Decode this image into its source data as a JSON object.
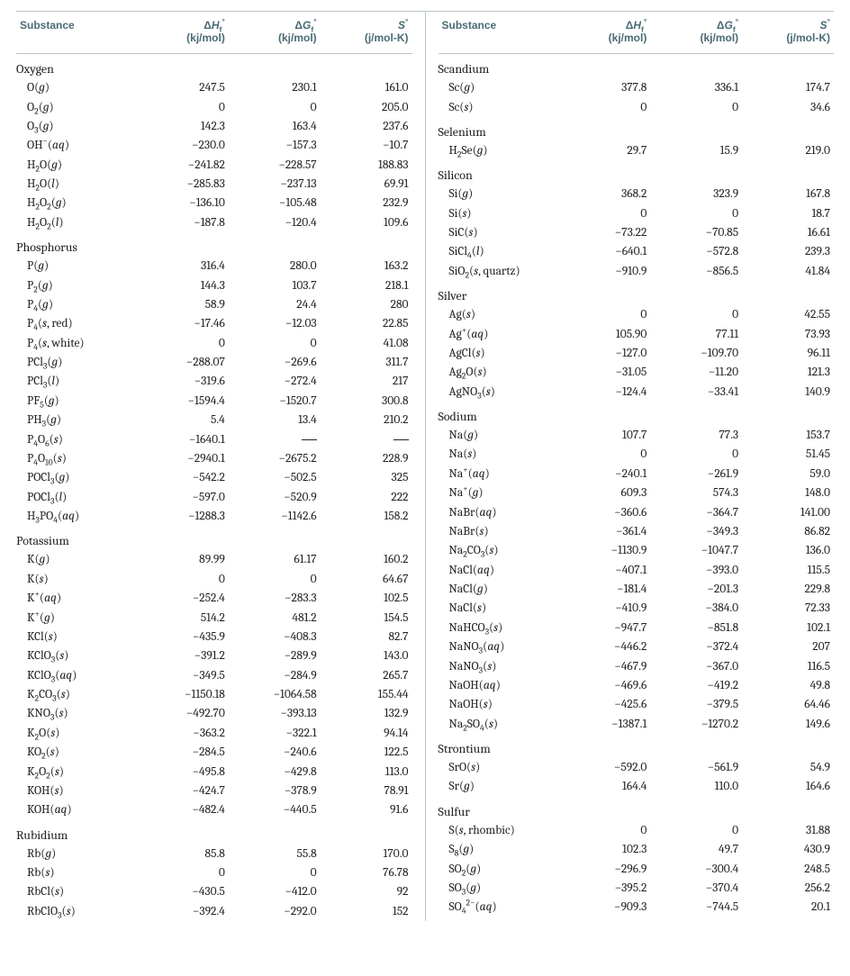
{
  "headers": {
    "substance": "Substance",
    "dh": "Δ",
    "dh_sym": "H",
    "dh_sub": "f",
    "dh_sup": "°",
    "dh_unit": "(kj/mol)",
    "dg": "Δ",
    "dg_sym": "G",
    "dg_sub": "f",
    "dg_sup": "°",
    "dg_unit": "(kj/mol)",
    "s": "S",
    "s_sup": "°",
    "s_unit": "(j/mol-K)"
  },
  "left": [
    {
      "section": "Oxygen"
    },
    {
      "f": "O(@g@)",
      "h": "247.5",
      "g": "230.1",
      "s": "161.0"
    },
    {
      "f": "O_2(@g@)",
      "h": "0",
      "g": "0",
      "s": "205.0"
    },
    {
      "f": "O_3(@g@)",
      "h": "142.3",
      "g": "163.4",
      "s": "237.6"
    },
    {
      "f": "OH^−(@aq@)",
      "h": "-230.0",
      "g": "-157.3",
      "s": "-10.7"
    },
    {
      "f": "H_2O(@g@)",
      "h": "-241.82",
      "g": "-228.57",
      "s": "188.83"
    },
    {
      "f": "H_2O(@l@)",
      "h": "-285.83",
      "g": "-237.13",
      "s": "69.91"
    },
    {
      "f": "H_2O_2(@g@)",
      "h": "-136.10",
      "g": "-105.48",
      "s": "232.9"
    },
    {
      "f": "H_2O_2(@l@)",
      "h": "-187.8",
      "g": "-120.4",
      "s": "109.6"
    },
    {
      "section": "Phosphorus"
    },
    {
      "f": "P(@g@)",
      "h": "316.4",
      "g": "280.0",
      "s": "163.2"
    },
    {
      "f": "P_2(@g@)",
      "h": "144.3",
      "g": "103.7",
      "s": "218.1"
    },
    {
      "f": "P_4(@g@)",
      "h": "58.9",
      "g": "24.4",
      "s": "280"
    },
    {
      "f": "P_4(@s@, red)",
      "h": "-17.46",
      "g": "-12.03",
      "s": "22.85"
    },
    {
      "f": "P_4(@s@, white)",
      "h": "0",
      "g": "0",
      "s": "41.08"
    },
    {
      "f": "PCl_3(@g@)",
      "h": "-288.07",
      "g": "-269.6",
      "s": "311.7"
    },
    {
      "f": "PCl_3(@l@)",
      "h": "-319.6",
      "g": "-272.4",
      "s": "217"
    },
    {
      "f": "PF_5(@g@)",
      "h": "-1594.4",
      "g": "-1520.7",
      "s": "300.8"
    },
    {
      "f": "PH_3(@g@)",
      "h": "5.4",
      "g": "13.4",
      "s": "210.2"
    },
    {
      "f": "P_4O_6(@s@)",
      "h": "-1640.1",
      "g": "—",
      "s": "—"
    },
    {
      "f": "P_4O_1_0(@s@)",
      "h": "-2940.1",
      "g": "-2675.2",
      "s": "228.9"
    },
    {
      "f": "POCl_3(@g@)",
      "h": "-542.2",
      "g": "-502.5",
      "s": "325"
    },
    {
      "f": "POCl_3(@l@)",
      "h": "-597.0",
      "g": "-520.9",
      "s": "222"
    },
    {
      "f": "H_3PO_4(@aq@)",
      "h": "-1288.3",
      "g": "-1142.6",
      "s": "158.2"
    },
    {
      "section": "Potassium"
    },
    {
      "f": "K(@g@)",
      "h": "89.99",
      "g": "61.17",
      "s": "160.2"
    },
    {
      "f": "K(@s@)",
      "h": "0",
      "g": "0",
      "s": "64.67"
    },
    {
      "f": "K^+(@aq@)",
      "h": "-252.4",
      "g": "-283.3",
      "s": "102.5"
    },
    {
      "f": "K^+(@g@)",
      "h": "514.2",
      "g": "481.2",
      "s": "154.5"
    },
    {
      "f": "KCl(@s@)",
      "h": "-435.9",
      "g": "-408.3",
      "s": "82.7"
    },
    {
      "f": "KClO_3(@s@)",
      "h": "-391.2",
      "g": "-289.9",
      "s": "143.0"
    },
    {
      "f": "KClO_3(@aq@)",
      "h": "-349.5",
      "g": "-284.9",
      "s": "265.7"
    },
    {
      "f": "K_2CO_3(@s@)",
      "h": "-1150.18",
      "g": "-1064.58",
      "s": "155.44"
    },
    {
      "f": "KNO_3(@s@)",
      "h": "-492.70",
      "g": "-393.13",
      "s": "132.9"
    },
    {
      "f": "K_2O(@s@)",
      "h": "-363.2",
      "g": "-322.1",
      "s": "94.14"
    },
    {
      "f": "KO_2(@s@)",
      "h": "-284.5",
      "g": "-240.6",
      "s": "122.5"
    },
    {
      "f": "K_2O_2(@s@)",
      "h": "-495.8",
      "g": "-429.8",
      "s": "113.0"
    },
    {
      "f": "KOH(@s@)",
      "h": "-424.7",
      "g": "-378.9",
      "s": "78.91"
    },
    {
      "f": "KOH(@aq@)",
      "h": "-482.4",
      "g": "-440.5",
      "s": "91.6"
    },
    {
      "section": "Rubidium"
    },
    {
      "f": "Rb(@g@)",
      "h": "85.8",
      "g": "55.8",
      "s": "170.0"
    },
    {
      "f": "Rb(@s@)",
      "h": "0",
      "g": "0",
      "s": "76.78"
    },
    {
      "f": "RbCl(@s@)",
      "h": "-430.5",
      "g": "-412.0",
      "s": "92"
    },
    {
      "f": "RbClO_3(@s@)",
      "h": "-392.4",
      "g": "-292.0",
      "s": "152"
    }
  ],
  "right": [
    {
      "section": "Scandium"
    },
    {
      "f": "Sc(@g@)",
      "h": "377.8",
      "g": "336.1",
      "s": "174.7"
    },
    {
      "f": "Sc(@s@)",
      "h": "0",
      "g": "0",
      "s": "34.6"
    },
    {
      "section": "Selenium"
    },
    {
      "f": "H_2Se(@g@)",
      "h": "29.7",
      "g": "15.9",
      "s": "219.0"
    },
    {
      "section": "Silicon"
    },
    {
      "f": "Si(@g@)",
      "h": "368.2",
      "g": "323.9",
      "s": "167.8"
    },
    {
      "f": "Si(@s@)",
      "h": "0",
      "g": "0",
      "s": "18.7"
    },
    {
      "f": "SiC(@s@)",
      "h": "-73.22",
      "g": "-70.85",
      "s": "16.61"
    },
    {
      "f": "SiCl_4(@l@)",
      "h": "-640.1",
      "g": "-572.8",
      "s": "239.3"
    },
    {
      "f": "SiO_2(@s@, quartz)",
      "h": "-910.9",
      "g": "-856.5",
      "s": "41.84"
    },
    {
      "section": "Silver"
    },
    {
      "f": "Ag(@s@)",
      "h": "0",
      "g": "0",
      "s": "42.55"
    },
    {
      "f": "Ag^+(@aq@)",
      "h": "105.90",
      "g": "77.11",
      "s": "73.93"
    },
    {
      "f": "AgCl(@s@)",
      "h": "-127.0",
      "g": "-109.70",
      "s": "96.11"
    },
    {
      "f": "Ag_2O(@s@)",
      "h": "-31.05",
      "g": "-11.20",
      "s": "121.3"
    },
    {
      "f": "AgNO_3(@s@)",
      "h": "-124.4",
      "g": "-33.41",
      "s": "140.9"
    },
    {
      "section": "Sodium"
    },
    {
      "f": "Na(@g@)",
      "h": "107.7",
      "g": "77.3",
      "s": "153.7"
    },
    {
      "f": "Na(@s@)",
      "h": "0",
      "g": "0",
      "s": "51.45"
    },
    {
      "f": "Na^+(@aq@)",
      "h": "-240.1",
      "g": "-261.9",
      "s": "59.0"
    },
    {
      "f": "Na^+(@g@)",
      "h": "609.3",
      "g": "574.3",
      "s": "148.0"
    },
    {
      "f": "NaBr(@aq@)",
      "h": "-360.6",
      "g": "-364.7",
      "s": "141.00"
    },
    {
      "f": "NaBr(@s@)",
      "h": "-361.4",
      "g": "-349.3",
      "s": "86.82"
    },
    {
      "f": "Na_2CO_3(@s@)",
      "h": "-1130.9",
      "g": "-1047.7",
      "s": "136.0"
    },
    {
      "f": "NaCl(@aq@)",
      "h": "-407.1",
      "g": "-393.0",
      "s": "115.5"
    },
    {
      "f": "NaCl(@g@)",
      "h": "-181.4",
      "g": "-201.3",
      "s": "229.8"
    },
    {
      "f": "NaCl(@s@)",
      "h": "-410.9",
      "g": "-384.0",
      "s": "72.33"
    },
    {
      "f": "NaHCO_3(@s@)",
      "h": "-947.7",
      "g": "-851.8",
      "s": "102.1"
    },
    {
      "f": "NaNO_3(@aq@)",
      "h": "-446.2",
      "g": "-372.4",
      "s": "207"
    },
    {
      "f": "NaNO_3(@s@)",
      "h": "-467.9",
      "g": "-367.0",
      "s": "116.5"
    },
    {
      "f": "NaOH(@aq@)",
      "h": "-469.6",
      "g": "-419.2",
      "s": "49.8"
    },
    {
      "f": "NaOH(@s@)",
      "h": "-425.6",
      "g": "-379.5",
      "s": "64.46"
    },
    {
      "f": "Na_2SO_4(@s@)",
      "h": "-1387.1",
      "g": "-1270.2",
      "s": "149.6"
    },
    {
      "section": "Strontium"
    },
    {
      "f": "SrO(@s@)",
      "h": "-592.0",
      "g": "-561.9",
      "s": "54.9"
    },
    {
      "f": "Sr(@g@)",
      "h": "164.4",
      "g": "110.0",
      "s": "164.6"
    },
    {
      "section": "Sulfur"
    },
    {
      "f": "S(@s@, rhombic)",
      "h": "0",
      "g": "0",
      "s": "31.88"
    },
    {
      "f": "S_8(@g@)",
      "h": "102.3",
      "g": "49.7",
      "s": "430.9"
    },
    {
      "f": "SO_2(@g@)",
      "h": "-296.9",
      "g": "-300.4",
      "s": "248.5"
    },
    {
      "f": "SO_3(@g@)",
      "h": "-395.2",
      "g": "-370.4",
      "s": "256.2"
    },
    {
      "f": "SO_4^2^−(@aq@)",
      "h": "-909.3",
      "g": "-744.5",
      "s": "20.1"
    }
  ]
}
